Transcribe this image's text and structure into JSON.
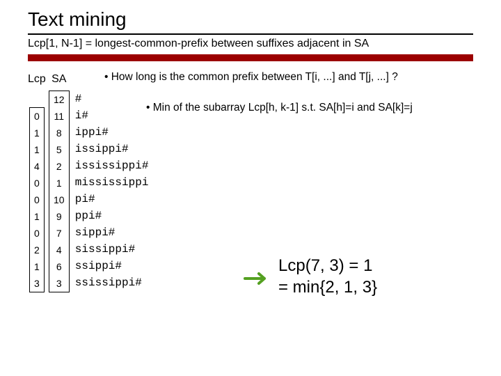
{
  "title": "Text mining",
  "subtitle": "Lcp[1, N-1] = longest-common-prefix between suffixes adjacent in SA",
  "question1": "• How long is the common prefix between T[i, ...] and T[j, ...] ?",
  "question2": "• Min of the subarray Lcp[h, k-1] s.t. SA[h]=i and SA[k]=j",
  "headers": {
    "lcp": "Lcp",
    "sa": "SA"
  },
  "lcp": [
    "0",
    "1",
    "1",
    "4",
    "0",
    "0",
    "1",
    "0",
    "2",
    "1",
    "3"
  ],
  "sa": [
    "12",
    "11",
    "8",
    "5",
    "2",
    "1",
    "10",
    "9",
    "7",
    "4",
    "6",
    "3"
  ],
  "suffixes": [
    "#",
    "i#",
    "ippi#",
    "issippi#",
    "ississippi#",
    "mississippi",
    "pi#",
    "ppi#",
    "sippi#",
    "sissippi#",
    "ssippi#",
    "ssissippi#"
  ],
  "result_line1": "Lcp(7, 3) = 1",
  "result_line2": "= min{2, 1, 3}",
  "colors": {
    "bar": "#9b0000",
    "arrow": "#54a021"
  }
}
